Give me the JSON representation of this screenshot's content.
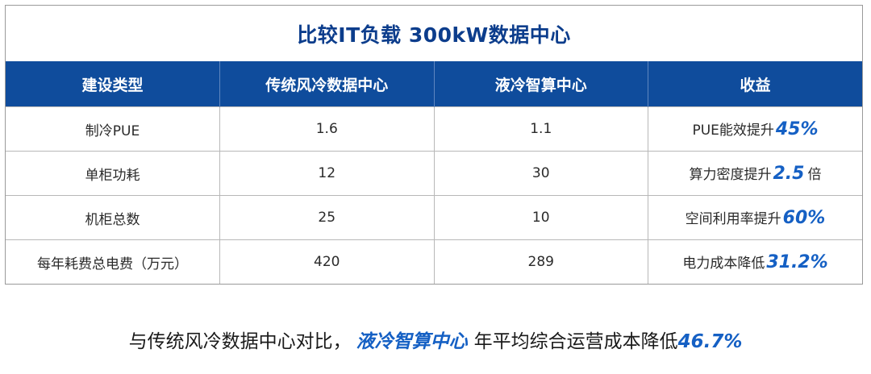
{
  "title": "比较IT负载 300kW数据中心",
  "columns": [
    "建设类型",
    "传统风冷数据中心",
    "液冷智算中心",
    "收益"
  ],
  "rows": [
    {
      "type": "制冷PUE",
      "air": "1.6",
      "liquid": "1.1",
      "benefit_text": "PUE能效提升",
      "benefit_value": "45%",
      "benefit_suffix": ""
    },
    {
      "type": "单柜功耗",
      "air": "12",
      "liquid": "30",
      "benefit_text": "算力密度提升",
      "benefit_value": "2.5",
      "benefit_suffix": "倍"
    },
    {
      "type": "机柜总数",
      "air": "25",
      "liquid": "10",
      "benefit_text": "空间利用率提升",
      "benefit_value": "60%",
      "benefit_suffix": ""
    },
    {
      "type": "每年耗费总电费（万元）",
      "air": "420",
      "liquid": "289",
      "benefit_text": "电力成本降低",
      "benefit_value": "31.2%",
      "benefit_suffix": ""
    }
  ],
  "conclusion": {
    "prefix": "与传统风冷数据中心对比，",
    "highlight": "液冷智算中心",
    "middle": "年平均综合运营成本降低",
    "value": "46.7%"
  },
  "colors": {
    "header_bg": "#0f4c9c",
    "title": "#0c3d8c",
    "accent": "#1560c4"
  }
}
